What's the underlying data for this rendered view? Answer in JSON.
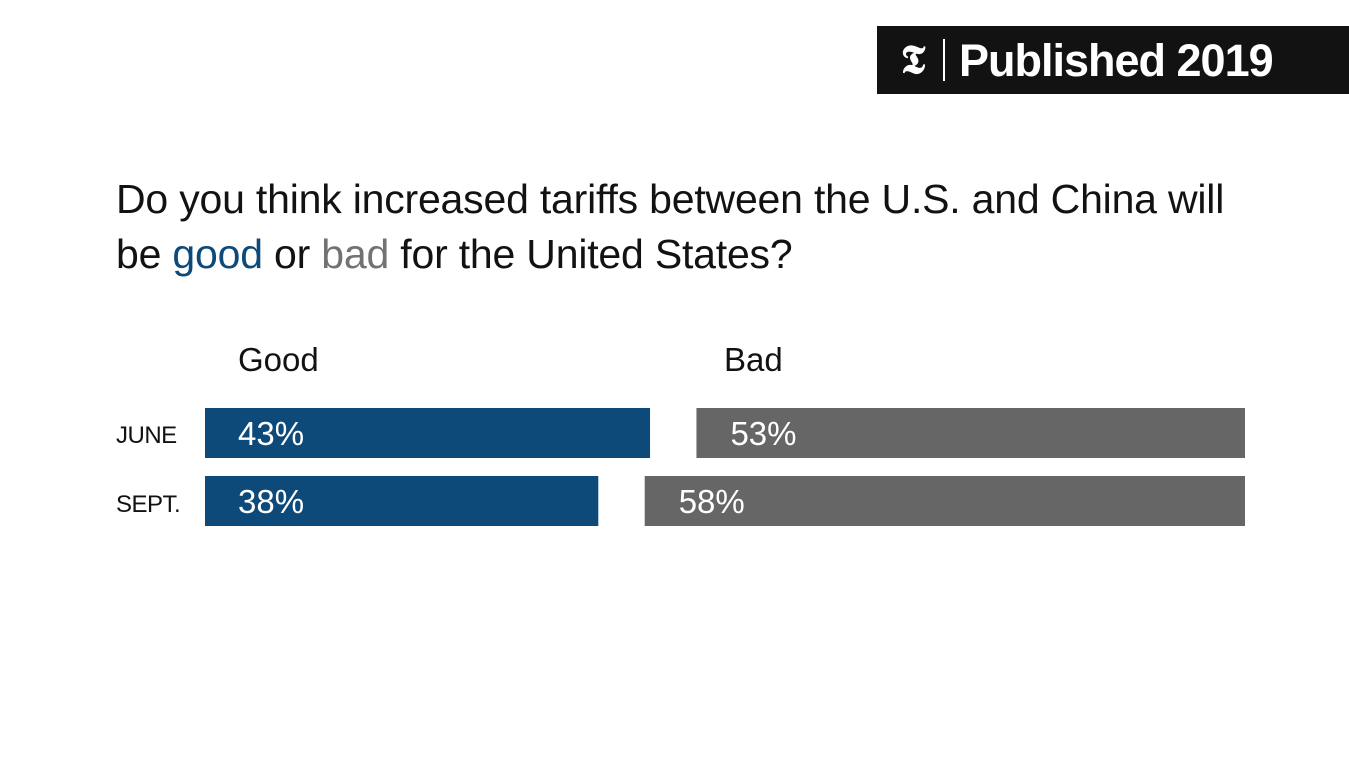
{
  "badge": {
    "logo": "𝕿",
    "text": "Published 2019"
  },
  "title": {
    "part1": "Do you think increased tariffs between the U.S. and China will be ",
    "good_word": "good",
    "middle": " or ",
    "bad_word": "bad",
    "part2": " for the United States?"
  },
  "colors": {
    "good": "#0d4a7a",
    "bad": "#666666",
    "label_text": "#ffffff"
  },
  "chart_data": {
    "type": "bar",
    "orientation": "horizontal",
    "categories": [
      "JUNE",
      "SEPT."
    ],
    "series": [
      {
        "name": "Good",
        "values": [
          43,
          38
        ],
        "labels": [
          "43%",
          "38%"
        ]
      },
      {
        "name": "Bad",
        "values": [
          53,
          58
        ],
        "labels": [
          "53%",
          "58%"
        ]
      }
    ],
    "unit": "%",
    "xlim": [
      0,
      100
    ]
  }
}
